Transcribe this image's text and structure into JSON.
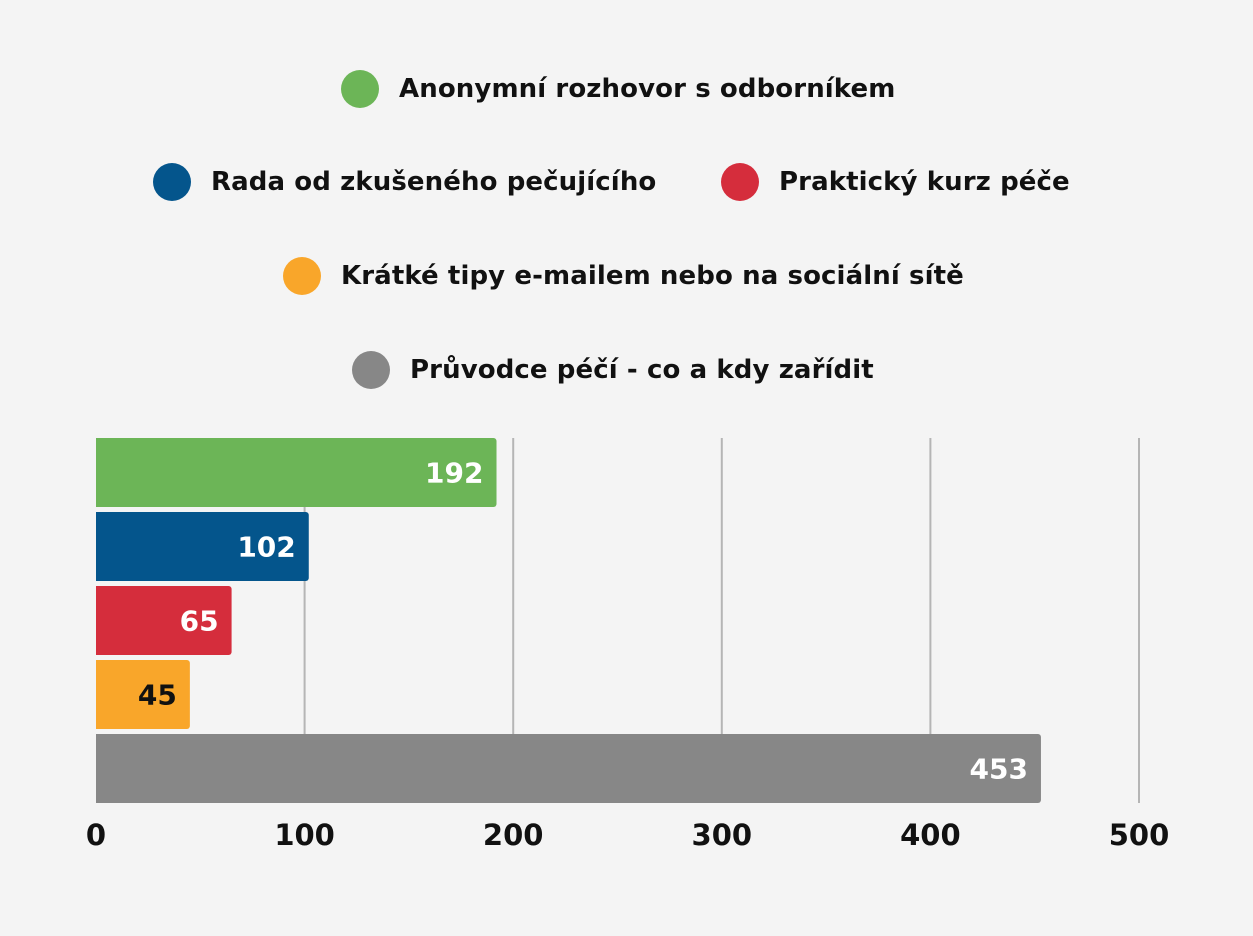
{
  "chart_data": {
    "type": "bar",
    "orientation": "horizontal",
    "categories": [
      "Anonymní rozhovor s odborníkem",
      "Rada od zkušeného pečujícího",
      "Praktický kurz péče",
      "Krátké tipy e-mailem nebo na sociální sítě",
      "Průvodce péčí - co a kdy zařídit"
    ],
    "values": [
      192,
      102,
      65,
      45,
      453
    ],
    "colors": [
      "#6cb557",
      "#04558c",
      "#d52d3c",
      "#f9a62a",
      "#878787"
    ],
    "value_label_colors": [
      "#ffffff",
      "#ffffff",
      "#ffffff",
      "#111111",
      "#ffffff"
    ],
    "xlim": [
      0,
      500
    ],
    "x_ticks": [
      0,
      100,
      200,
      300,
      400,
      500
    ],
    "grid": "vertical",
    "legend_placement": "top",
    "title": "",
    "xlabel": "",
    "ylabel": ""
  }
}
